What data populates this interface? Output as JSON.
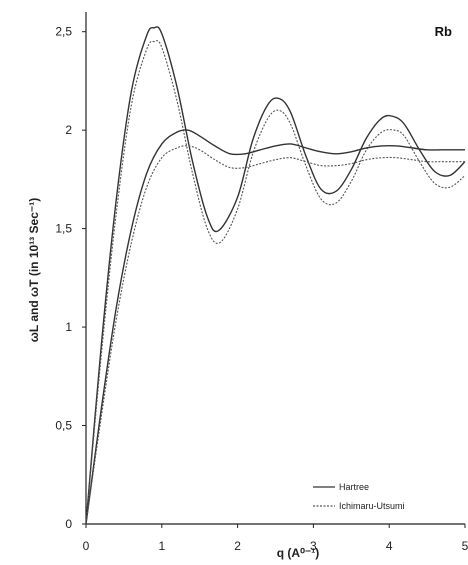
{
  "chart_data": {
    "type": "line",
    "title": "",
    "panel_label": "Rb",
    "xlabel": "q (A⁰⁻¹)",
    "ylabel": "ωL and ωT (in 10¹³ Sec⁻¹)",
    "xlim": [
      0,
      5
    ],
    "ylim": [
      0,
      2.6
    ],
    "x_ticks": [
      0,
      1,
      2,
      3,
      4,
      5
    ],
    "x_tick_labels": [
      "0",
      "1",
      "2",
      "3",
      "4",
      "5"
    ],
    "y_ticks": [
      0,
      0.5,
      1,
      1.5,
      2,
      2.5
    ],
    "y_tick_labels": [
      "0",
      "0,5",
      "1",
      "1,5",
      "2",
      "2,5"
    ],
    "grid": false,
    "legend": {
      "placement": "bottom-right",
      "entries": [
        "Hartree",
        "Ichimaru-Utsumi"
      ]
    },
    "series": [
      {
        "name": "Hartree",
        "branch": "longitudinal",
        "style": "solid",
        "x": [
          0,
          0.2,
          0.4,
          0.6,
          0.8,
          0.9,
          1.0,
          1.2,
          1.4,
          1.6,
          1.75,
          2.0,
          2.2,
          2.4,
          2.55,
          2.7,
          2.9,
          3.1,
          3.3,
          3.5,
          3.7,
          3.9,
          4.05,
          4.2,
          4.4,
          4.6,
          4.8,
          5.0
        ],
        "y": [
          0,
          0.9,
          1.65,
          2.2,
          2.48,
          2.52,
          2.49,
          2.22,
          1.85,
          1.56,
          1.49,
          1.66,
          1.95,
          2.13,
          2.16,
          2.09,
          1.87,
          1.7,
          1.69,
          1.8,
          1.96,
          2.06,
          2.07,
          2.03,
          1.9,
          1.79,
          1.77,
          1.84
        ]
      },
      {
        "name": "Ichimaru-Utsumi",
        "branch": "longitudinal",
        "style": "dotted",
        "x": [
          0,
          0.2,
          0.4,
          0.6,
          0.8,
          0.9,
          1.0,
          1.2,
          1.4,
          1.6,
          1.77,
          2.0,
          2.2,
          2.4,
          2.55,
          2.7,
          2.9,
          3.1,
          3.3,
          3.5,
          3.7,
          3.9,
          4.07,
          4.2,
          4.4,
          4.6,
          4.8,
          5.0
        ],
        "y": [
          0,
          0.85,
          1.58,
          2.13,
          2.41,
          2.45,
          2.42,
          2.15,
          1.79,
          1.5,
          1.43,
          1.6,
          1.88,
          2.06,
          2.1,
          2.03,
          1.82,
          1.65,
          1.63,
          1.74,
          1.9,
          1.99,
          2.0,
          1.97,
          1.84,
          1.73,
          1.71,
          1.77
        ]
      },
      {
        "name": "Hartree",
        "branch": "transverse",
        "style": "solid",
        "x": [
          0,
          0.2,
          0.4,
          0.6,
          0.8,
          1.0,
          1.2,
          1.35,
          1.5,
          1.7,
          1.9,
          2.1,
          2.3,
          2.5,
          2.7,
          2.9,
          3.1,
          3.3,
          3.5,
          3.7,
          3.9,
          4.1,
          4.3,
          4.5,
          4.7,
          5.0
        ],
        "y": [
          0,
          0.58,
          1.1,
          1.5,
          1.78,
          1.93,
          1.99,
          2.0,
          1.97,
          1.92,
          1.88,
          1.88,
          1.9,
          1.92,
          1.93,
          1.91,
          1.89,
          1.88,
          1.89,
          1.91,
          1.92,
          1.92,
          1.91,
          1.9,
          1.9,
          1.9
        ]
      },
      {
        "name": "Ichimaru-Utsumi",
        "branch": "transverse",
        "style": "dotted",
        "x": [
          0,
          0.2,
          0.4,
          0.6,
          0.8,
          1.0,
          1.2,
          1.35,
          1.5,
          1.7,
          1.9,
          2.1,
          2.3,
          2.5,
          2.7,
          2.9,
          3.1,
          3.3,
          3.5,
          3.7,
          3.9,
          4.1,
          4.3,
          4.5,
          4.7,
          5.0
        ],
        "y": [
          0,
          0.54,
          1.04,
          1.43,
          1.71,
          1.86,
          1.91,
          1.92,
          1.9,
          1.85,
          1.81,
          1.81,
          1.83,
          1.85,
          1.86,
          1.84,
          1.82,
          1.82,
          1.83,
          1.85,
          1.86,
          1.86,
          1.85,
          1.84,
          1.84,
          1.84
        ]
      }
    ]
  }
}
